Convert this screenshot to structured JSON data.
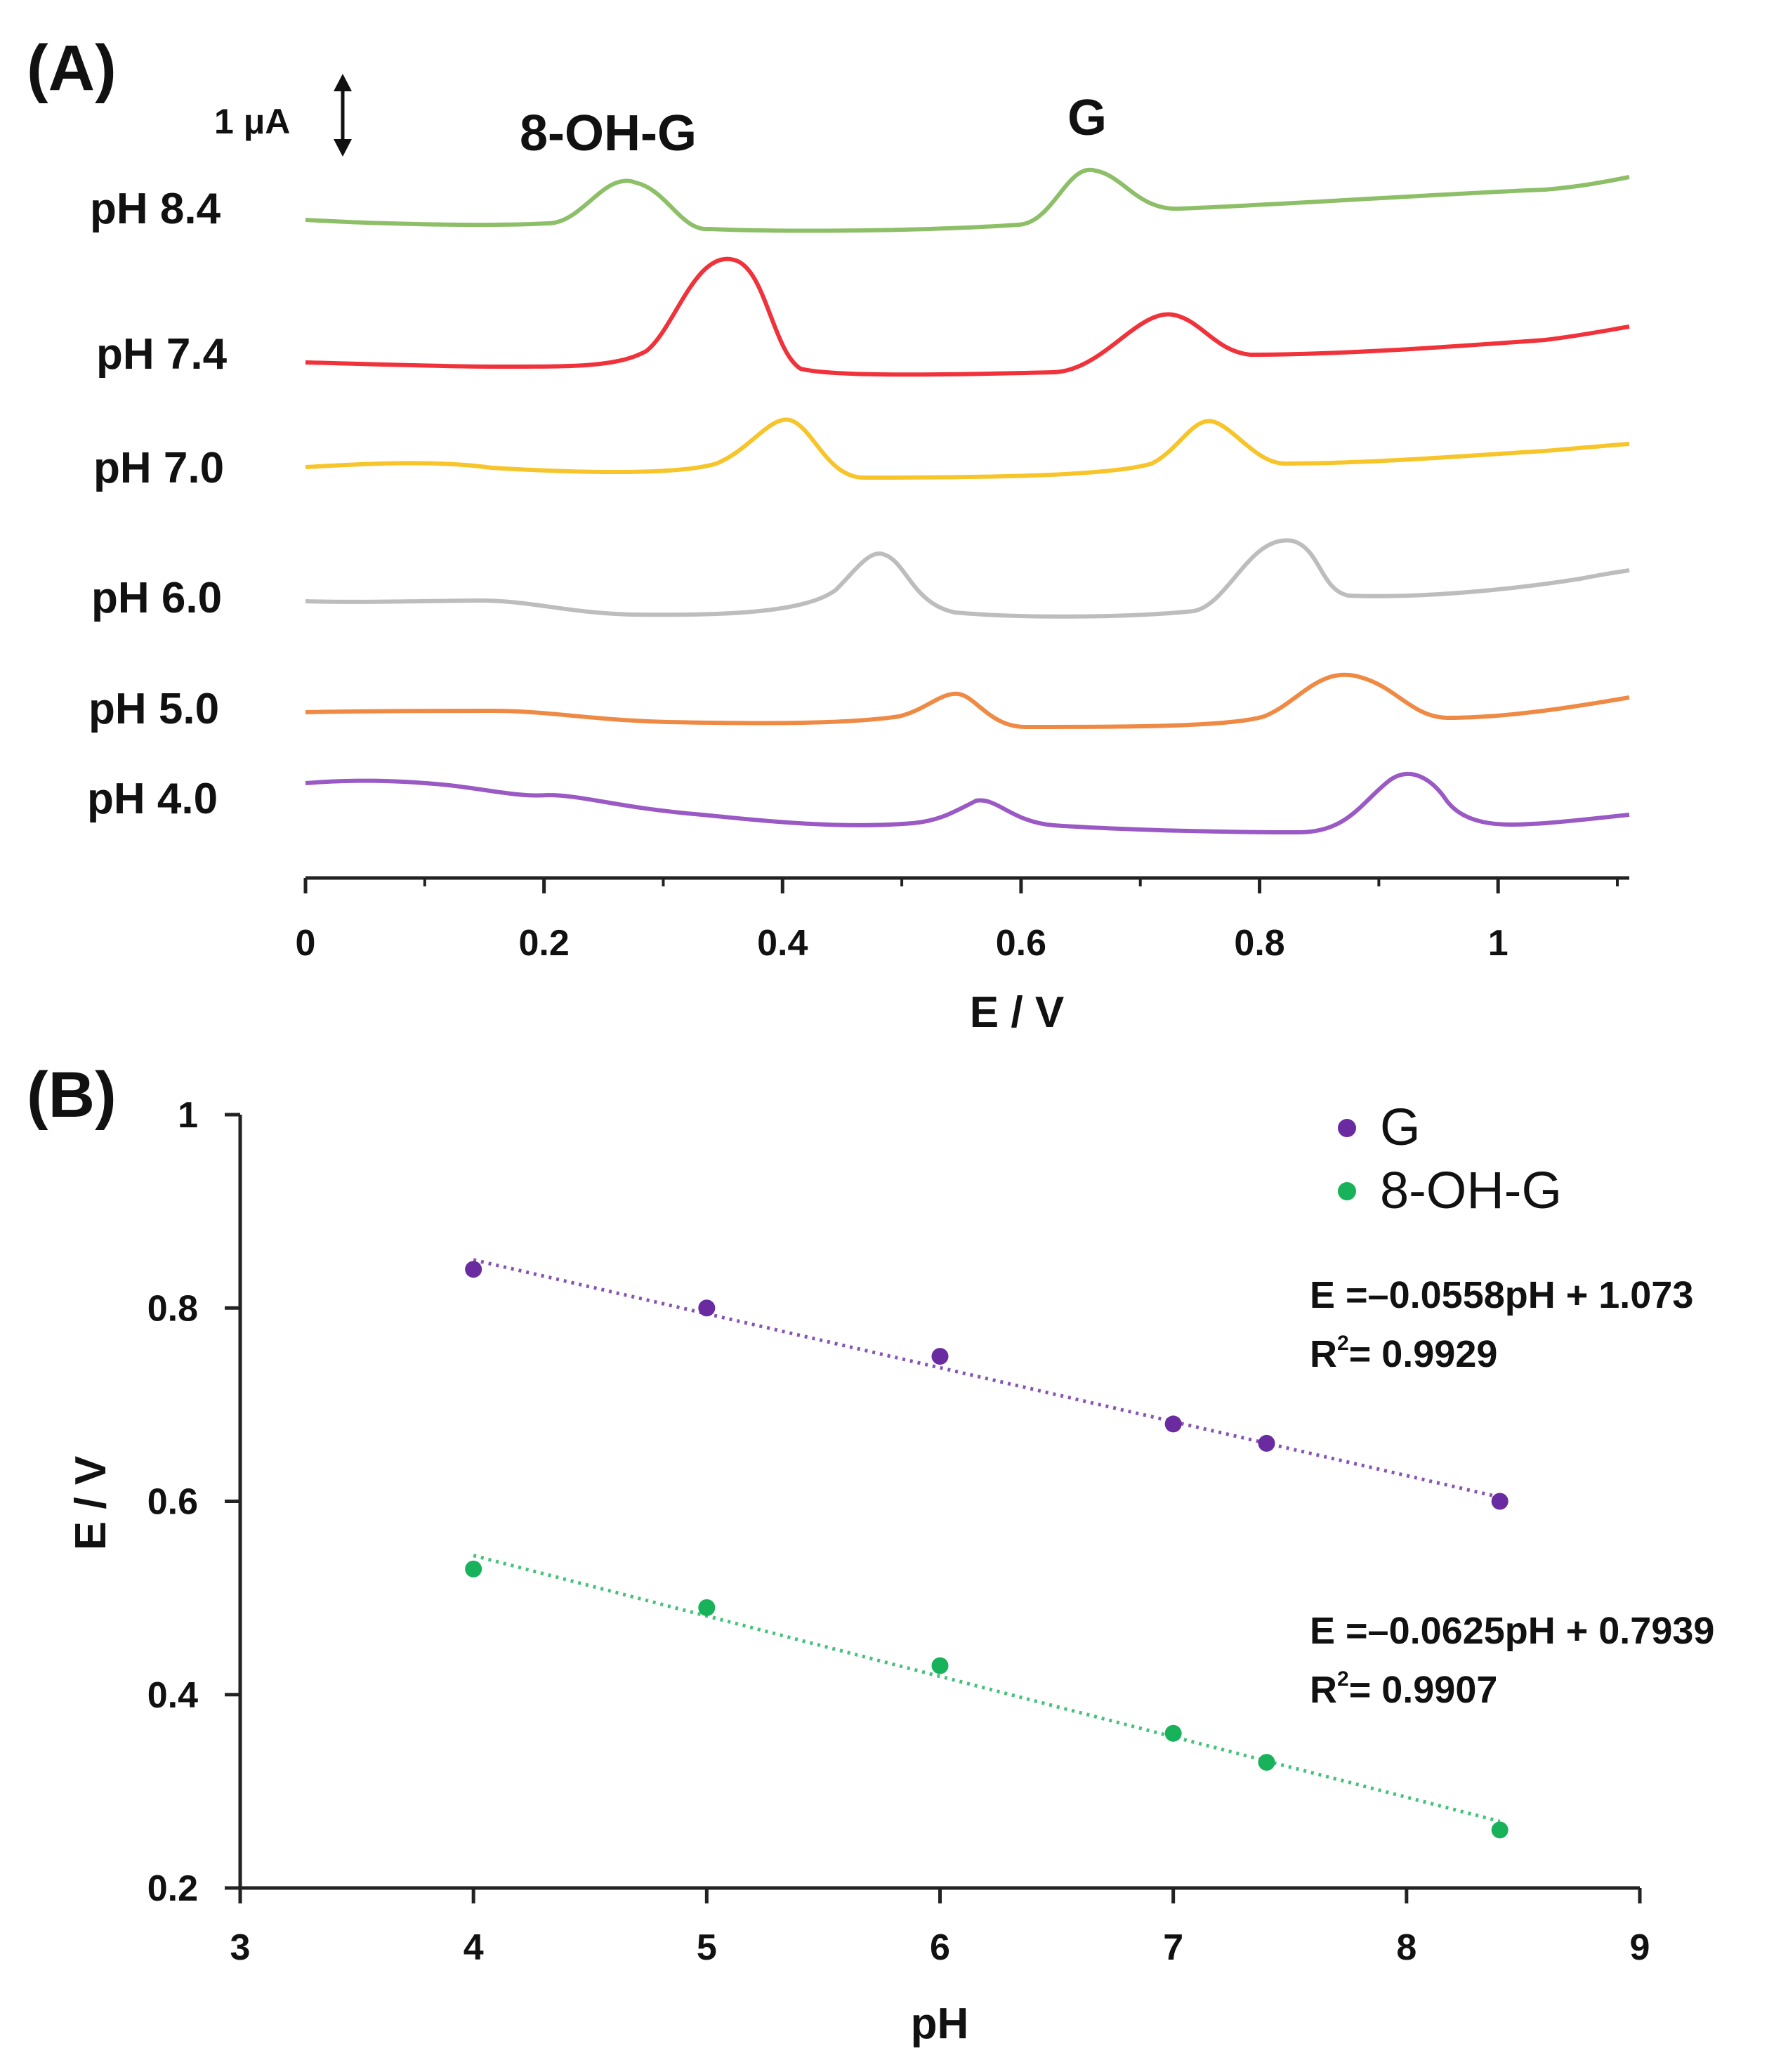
{
  "chart_data": [
    {
      "type": "line",
      "panel_label": "(A)",
      "title": "",
      "xlabel": "E / V",
      "ylabel": "",
      "xlim": [
        0,
        1.11
      ],
      "x_ticks": [
        "0",
        "0.2",
        "0.4",
        "0.6",
        "0.8",
        "1"
      ],
      "scale_bar": "1  μA",
      "peak_labels": [
        "8-OH-G",
        "G"
      ],
      "series": [
        {
          "name": "pH 8.4",
          "color": "#8dbf68",
          "peak_8ohg": 0.275,
          "peak_g": 0.66
        },
        {
          "name": "pH 7.4",
          "color": "#f0323a",
          "peak_8ohg": 0.355,
          "peak_g": 0.73
        },
        {
          "name": "pH 7.0",
          "color": "#f7c52a",
          "peak_8ohg": 0.405,
          "peak_g": 0.755
        },
        {
          "name": "pH 6.0",
          "color": "#bdbdbd",
          "peak_8ohg": 0.475,
          "peak_g": 0.82
        },
        {
          "name": "pH 5.0",
          "color": "#ef8a45",
          "peak_8ohg": 0.54,
          "peak_g": 0.885
        },
        {
          "name": "pH 4.0",
          "color": "#9a59c4",
          "peak_8ohg": 0.58,
          "peak_g": 0.935
        }
      ]
    },
    {
      "type": "scatter",
      "panel_label": "(B)",
      "title": "",
      "xlabel": "pH",
      "ylabel": "E / V",
      "xlim": [
        3,
        9
      ],
      "ylim": [
        0.2,
        1
      ],
      "x_ticks": [
        "3",
        "4",
        "5",
        "6",
        "7",
        "8",
        "9"
      ],
      "y_ticks": [
        "0.2",
        "0.4",
        "0.6",
        "0.8",
        "1"
      ],
      "legend_position": "top-right",
      "series": [
        {
          "name": "G",
          "color": "#6a2aa0",
          "x": [
            4,
            5,
            6,
            7,
            7.4,
            8.4
          ],
          "y": [
            0.84,
            0.8,
            0.75,
            0.68,
            0.66,
            0.6
          ],
          "fit": {
            "slope": -0.0558,
            "intercept": 1.073
          },
          "equation": "E =–0.0558pH + 1.073",
          "r2_prefix": "R",
          "r2_exp": "2",
          "r2_value": "= 0.9929"
        },
        {
          "name": "8-OH-G",
          "color": "#18b25a",
          "x": [
            4,
            5,
            6,
            7,
            7.4,
            8.4
          ],
          "y": [
            0.53,
            0.49,
            0.43,
            0.36,
            0.33,
            0.26
          ],
          "fit": {
            "slope": -0.0625,
            "intercept": 0.7939
          },
          "equation": "E =–0.0625pH + 0.7939",
          "r2_prefix": "R",
          "r2_exp": "2",
          "r2_value": "= 0.9907"
        }
      ]
    }
  ]
}
